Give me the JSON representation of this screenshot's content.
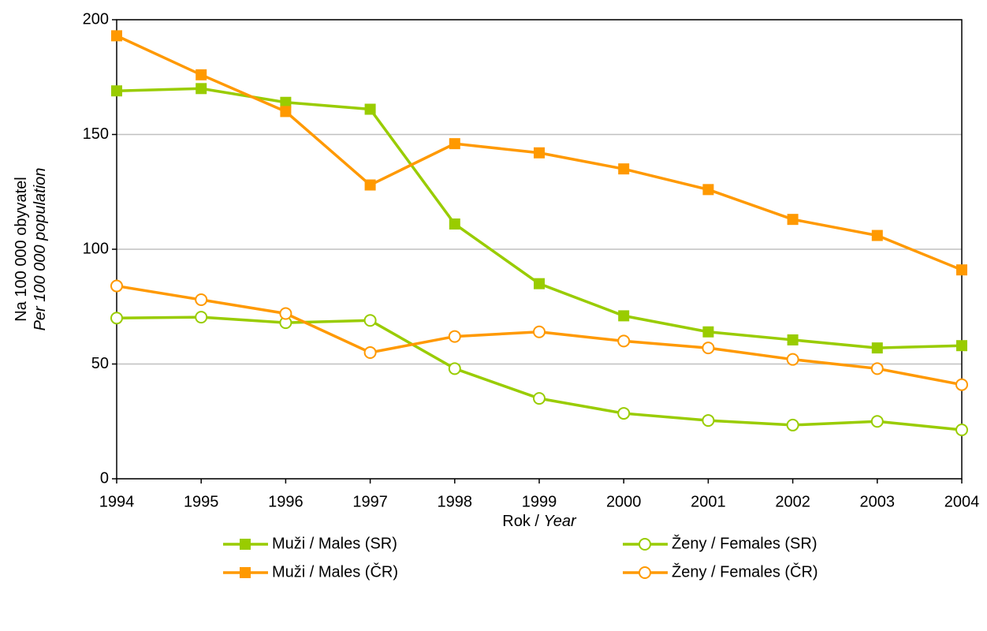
{
  "chart_data": {
    "type": "line",
    "x_label": [
      "Rok / ",
      "Year"
    ],
    "y_label": [
      "Na 100 000 obyvatel",
      "Per 100 000 population"
    ],
    "x": [
      1994,
      1995,
      1996,
      1997,
      1998,
      1999,
      2000,
      2001,
      2002,
      2003,
      2004
    ],
    "xlim": [
      1994,
      2004
    ],
    "xticks": [
      1994,
      1995,
      1996,
      1997,
      1998,
      1999,
      2000,
      2001,
      2002,
      2003,
      2004
    ],
    "ylim": [
      0,
      200
    ],
    "yticks": [
      0,
      50,
      100,
      150,
      200
    ],
    "grid": true,
    "legend": "bottom",
    "series": [
      {
        "name": "Muži / Males (SR)",
        "color": "#99cc00",
        "marker": "square",
        "values": [
          169,
          170,
          164,
          161,
          111,
          85,
          71,
          64,
          60.5,
          57,
          58
        ]
      },
      {
        "name": "Ženy / Females (SR)",
        "color": "#99cc00",
        "marker": "circle",
        "values": [
          70,
          70.4,
          68,
          69,
          48,
          35,
          28.5,
          25.4,
          23.4,
          25,
          21.3
        ]
      },
      {
        "name": "Muži / Males (ČR)",
        "color": "#ff9900",
        "marker": "square",
        "values": [
          193,
          176,
          160,
          128,
          146,
          142,
          135,
          126,
          113,
          106,
          91
        ]
      },
      {
        "name": "Ženy / Females (ČR)",
        "color": "#ff9900",
        "marker": "circle",
        "values": [
          84,
          78,
          72,
          55,
          62,
          64,
          60,
          57,
          52,
          48,
          41
        ]
      }
    ]
  }
}
